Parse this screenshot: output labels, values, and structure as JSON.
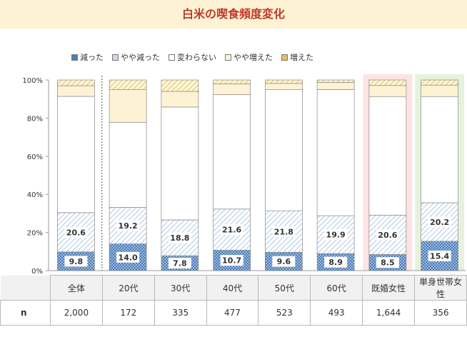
{
  "title": "白米の喫食頻度変化",
  "legend": [
    {
      "key": "reduced",
      "label": "減った"
    },
    {
      "key": "slightly_reduced",
      "label": "やや減った"
    },
    {
      "key": "unchanged",
      "label": "変わらない"
    },
    {
      "key": "slightly_increased",
      "label": "やや増えた"
    },
    {
      "key": "increased",
      "label": "増えた"
    }
  ],
  "colors": {
    "reduced": "#4a7ebb",
    "slightly_reduced": "#c8daf0",
    "unchanged": "#ececec",
    "slightly_increased": "#fdf3d4",
    "increased": "#e2c15a",
    "highlight_pink": "#fde3e3",
    "highlight_green": "#e6f2dd",
    "title": "#c0392b"
  },
  "chart_data": {
    "type": "bar",
    "stacked": true,
    "percent": true,
    "title": "白米の喫食頻度変化",
    "categories": [
      "全体",
      "20代",
      "30代",
      "40代",
      "50代",
      "60代",
      "既婚女性",
      "単身世帯女性"
    ],
    "n_label": "n",
    "n_values": [
      "2,000",
      "172",
      "335",
      "477",
      "523",
      "493",
      "1,644",
      "356"
    ],
    "ylim": [
      0,
      100
    ],
    "yticks": [
      0,
      20,
      40,
      60,
      80,
      100
    ],
    "ytick_labels": [
      "0%",
      "20%",
      "40%",
      "60%",
      "80%",
      "100%"
    ],
    "grid": false,
    "legend_position": "top-left",
    "series": [
      {
        "key": "reduced",
        "name": "減った",
        "values": [
          9.8,
          14.0,
          7.8,
          10.7,
          9.6,
          8.9,
          8.5,
          15.4
        ],
        "labels": [
          "9.8",
          "14.0",
          "7.8",
          "10.7",
          "9.6",
          "8.9",
          "8.5",
          "15.4"
        ]
      },
      {
        "key": "slightly_reduced",
        "name": "やや減った",
        "values": [
          20.6,
          19.2,
          18.8,
          21.6,
          21.8,
          19.9,
          20.6,
          20.2
        ],
        "labels": [
          "20.6",
          "19.2",
          "18.8",
          "21.6",
          "21.8",
          "19.9",
          "20.6",
          "20.2"
        ]
      },
      {
        "key": "unchanged",
        "name": "変わらない",
        "values": [
          61.0,
          44.5,
          59.2,
          60.0,
          63.5,
          66.2,
          62.2,
          55.7
        ]
      },
      {
        "key": "slightly_increased",
        "name": "やや増えた",
        "values": [
          5.6,
          17.2,
          8.2,
          5.7,
          3.3,
          3.7,
          5.8,
          6.0
        ]
      },
      {
        "key": "increased",
        "name": "増えた",
        "values": [
          3.0,
          5.1,
          6.0,
          2.0,
          1.8,
          1.3,
          2.9,
          2.7
        ]
      }
    ],
    "highlighted_categories": [
      {
        "category": "既婚女性",
        "color_key": "highlight_pink"
      },
      {
        "category": "単身世帯女性",
        "color_key": "highlight_green"
      }
    ],
    "separator_after_category": "全体"
  }
}
